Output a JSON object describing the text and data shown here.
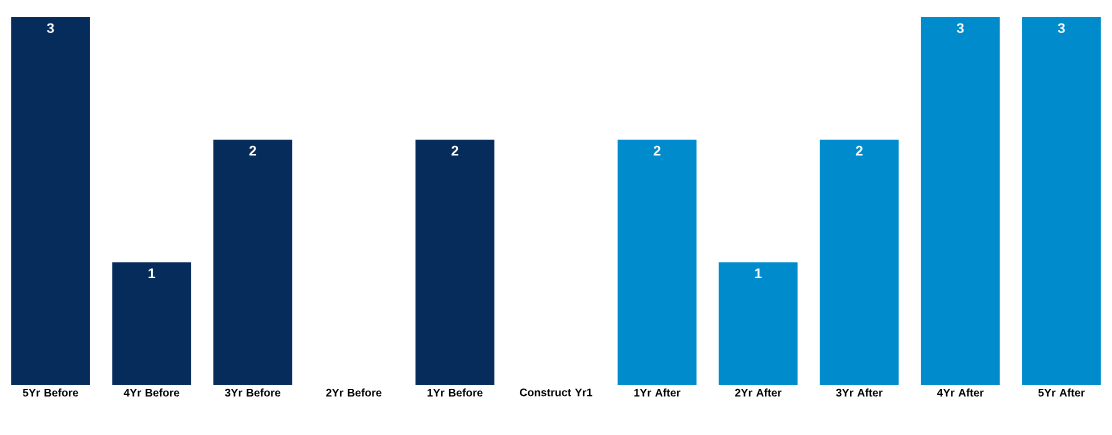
{
  "chart_data": {
    "type": "bar",
    "categories": [
      "5Yr Before",
      "4Yr Before",
      "3Yr Before",
      "2Yr Before",
      "1Yr Before",
      "Construct Yr1",
      "1Yr After",
      "2Yr After",
      "3Yr After",
      "4Yr After",
      "5Yr After"
    ],
    "values": [
      3,
      1,
      2,
      0,
      2,
      0,
      2,
      1,
      2,
      3,
      3
    ],
    "colors": [
      "#062c5c",
      "#062c5c",
      "#062c5c",
      "#062c5c",
      "#062c5c",
      "#062c5c",
      "#008bcc",
      "#008bcc",
      "#008bcc",
      "#008bcc",
      "#008bcc"
    ],
    "value_labels": [
      "3",
      "1",
      "2",
      null,
      "2",
      null,
      "2",
      "1",
      "2",
      "3",
      "3"
    ]
  }
}
